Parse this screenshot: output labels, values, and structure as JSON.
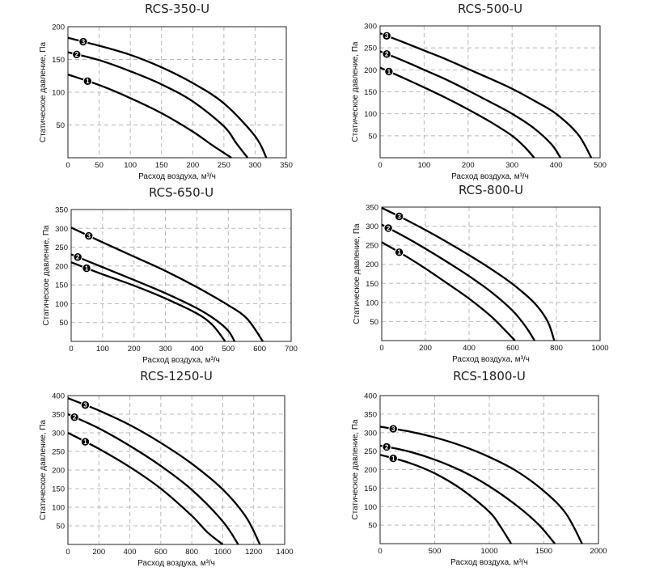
{
  "chart_data": [
    {
      "type": "line",
      "title": "RCS-350-U",
      "xlabel": "Расход воздуха, м³/ч",
      "ylabel": "Статическое давление, Па",
      "xlim": [
        0,
        350
      ],
      "ylim": [
        0,
        200
      ],
      "xticks": [
        0,
        50,
        100,
        150,
        200,
        250,
        300,
        350
      ],
      "yticks": [
        50,
        100,
        150,
        200
      ],
      "series": [
        {
          "name": "1",
          "x": [
            0,
            50,
            100,
            150,
            200,
            230,
            262
          ],
          "y": [
            127,
            111,
            91,
            68,
            40,
            20,
            0
          ]
        },
        {
          "name": "2",
          "x": [
            0,
            50,
            100,
            150,
            200,
            250,
            270,
            288
          ],
          "y": [
            161,
            149,
            132,
            112,
            86,
            48,
            22,
            0
          ]
        },
        {
          "name": "3",
          "x": [
            0,
            50,
            100,
            150,
            200,
            250,
            300,
            318
          ],
          "y": [
            183,
            171,
            157,
            138,
            114,
            83,
            33,
            0
          ]
        }
      ]
    },
    {
      "type": "line",
      "title": "RCS-500-U",
      "xlabel": "Расход воздуха, м³/ч",
      "ylabel": "Статическое давление, Па",
      "xlim": [
        0,
        500
      ],
      "ylim": [
        0,
        300
      ],
      "xticks": [
        0,
        100,
        200,
        300,
        400,
        500
      ],
      "yticks": [
        50,
        100,
        150,
        200,
        250,
        300
      ],
      "series": [
        {
          "name": "1",
          "x": [
            0,
            50,
            100,
            150,
            200,
            250,
            300,
            330,
            350
          ],
          "y": [
            205,
            183,
            160,
            136,
            110,
            82,
            50,
            23,
            0
          ]
        },
        {
          "name": "2",
          "x": [
            0,
            50,
            100,
            150,
            200,
            250,
            300,
            350,
            390,
            410
          ],
          "y": [
            242,
            222,
            200,
            178,
            153,
            127,
            100,
            67,
            30,
            0
          ]
        },
        {
          "name": "3",
          "x": [
            0,
            50,
            100,
            150,
            200,
            250,
            300,
            350,
            400,
            450,
            480
          ],
          "y": [
            283,
            264,
            244,
            224,
            202,
            180,
            157,
            130,
            100,
            53,
            0
          ]
        }
      ]
    },
    {
      "type": "line",
      "title": "RCS-650-U",
      "xlabel": "Расход воздуха, м³/ч",
      "ylabel": "Статическое давление, Па",
      "xlim": [
        0,
        700
      ],
      "ylim": [
        0,
        350
      ],
      "xticks": [
        0,
        100,
        200,
        300,
        400,
        500,
        600,
        700
      ],
      "yticks": [
        50,
        100,
        150,
        200,
        250,
        300,
        350
      ],
      "series": [
        {
          "name": "1",
          "x": [
            0,
            100,
            200,
            300,
            400,
            450,
            490
          ],
          "y": [
            210,
            178,
            148,
            114,
            74,
            43,
            0
          ]
        },
        {
          "name": "2",
          "x": [
            0,
            100,
            200,
            300,
            400,
            460,
            500,
            520
          ],
          "y": [
            231,
            197,
            163,
            128,
            88,
            57,
            28,
            0
          ]
        },
        {
          "name": "3",
          "x": [
            0,
            100,
            200,
            300,
            400,
            500,
            560,
            610
          ],
          "y": [
            302,
            263,
            225,
            187,
            144,
            96,
            60,
            0
          ]
        }
      ]
    },
    {
      "type": "line",
      "title": "RCS-800-U",
      "xlabel": "Расход воздуха, м³/ч",
      "ylabel": "Статическое давление, Па",
      "xlim": [
        0,
        1000
      ],
      "ylim": [
        0,
        350
      ],
      "xticks": [
        0,
        200,
        400,
        600,
        800,
        1000
      ],
      "yticks": [
        50,
        100,
        150,
        200,
        250,
        300,
        350
      ],
      "series": [
        {
          "name": "1",
          "x": [
            0,
            100,
            200,
            300,
            400,
            500,
            560,
            610
          ],
          "y": [
            258,
            225,
            189,
            150,
            110,
            64,
            30,
            0
          ]
        },
        {
          "name": "2",
          "x": [
            0,
            100,
            200,
            300,
            400,
            500,
            600,
            660,
            700
          ],
          "y": [
            304,
            274,
            241,
            206,
            169,
            128,
            78,
            36,
            0
          ]
        },
        {
          "name": "3",
          "x": [
            0,
            100,
            200,
            300,
            400,
            500,
            600,
            700,
            760,
            790
          ],
          "y": [
            348,
            320,
            290,
            258,
            224,
            188,
            148,
            98,
            50,
            0
          ]
        }
      ]
    },
    {
      "type": "line",
      "title": "RCS-1250-U",
      "xlabel": "Расход воздуха, м³/ч",
      "ylabel": "Статическое давление, Па",
      "xlim": [
        0,
        1400
      ],
      "ylim": [
        0,
        400
      ],
      "xticks": [
        0,
        200,
        400,
        600,
        800,
        1000,
        1200,
        1400
      ],
      "yticks": [
        50,
        100,
        150,
        200,
        250,
        300,
        350,
        400
      ],
      "series": [
        {
          "name": "1",
          "x": [
            0,
            200,
            400,
            600,
            800,
            900,
            1000
          ],
          "y": [
            300,
            257,
            208,
            150,
            77,
            33,
            0
          ]
        },
        {
          "name": "2",
          "x": [
            0,
            200,
            400,
            600,
            800,
            1000,
            1100
          ],
          "y": [
            350,
            312,
            265,
            211,
            147,
            62,
            0
          ]
        },
        {
          "name": "3",
          "x": [
            0,
            200,
            400,
            600,
            800,
            1000,
            1150,
            1240
          ],
          "y": [
            393,
            360,
            321,
            273,
            217,
            148,
            74,
            0
          ]
        }
      ]
    },
    {
      "type": "line",
      "title": "RCS-1800-U",
      "xlabel": "Расход воздуха, м³/ч",
      "ylabel": "Статическое давление, Па",
      "xlim": [
        0,
        2000
      ],
      "ylim": [
        0,
        400
      ],
      "xticks": [
        0,
        500,
        1000,
        1500,
        2000
      ],
      "yticks": [
        50,
        100,
        150,
        200,
        250,
        300,
        350,
        400
      ],
      "series": [
        {
          "name": "1",
          "x": [
            0,
            250,
            500,
            750,
            1000,
            1100,
            1200
          ],
          "y": [
            240,
            220,
            190,
            146,
            86,
            47,
            0
          ]
        },
        {
          "name": "2",
          "x": [
            0,
            250,
            500,
            750,
            1000,
            1250,
            1450,
            1600
          ],
          "y": [
            265,
            250,
            227,
            196,
            155,
            103,
            52,
            0
          ]
        },
        {
          "name": "3",
          "x": [
            0,
            250,
            500,
            750,
            1000,
            1250,
            1500,
            1700,
            1850
          ],
          "y": [
            316,
            304,
            287,
            264,
            234,
            196,
            142,
            82,
            0
          ]
        }
      ]
    }
  ]
}
